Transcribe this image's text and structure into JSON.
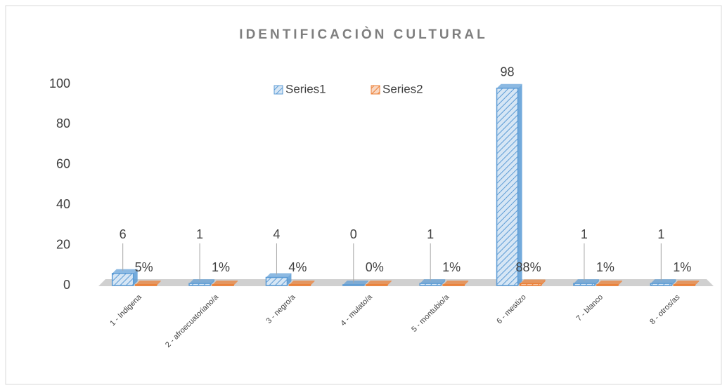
{
  "chart_data": {
    "type": "bar3d",
    "title": "IDENTIFICACIÒN CULTURAL",
    "categories": [
      "1 - Indigena",
      "2 - afroecuatoriano/a",
      "3 - negro/a",
      "4 - mulato/a",
      "5 - montubio/a",
      "6 - mestizo",
      "7 - blanco",
      "8 - otros/as"
    ],
    "series": [
      {
        "name": "Series1",
        "color": "#5b9bd5",
        "values": [
          6,
          1,
          4,
          0,
          1,
          98,
          1,
          1
        ]
      },
      {
        "name": "Series2",
        "color": "#ed7d31",
        "values": [
          0.05,
          0.01,
          0.04,
          0,
          0.01,
          0.88,
          0.01,
          0.01
        ],
        "value_labels": [
          "5%",
          "1%",
          "4%",
          "0%",
          "1%",
          "88%",
          "1%",
          "1%"
        ]
      }
    ],
    "ylim": [
      0,
      100
    ],
    "yticks": [
      0,
      20,
      40,
      60,
      80,
      100
    ],
    "grid": false,
    "legend": "top"
  }
}
